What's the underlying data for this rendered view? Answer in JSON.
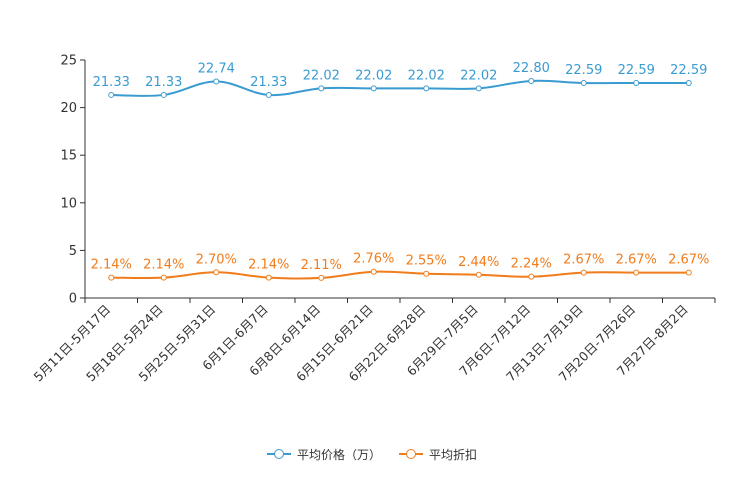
{
  "chart_data": {
    "type": "line",
    "categories": [
      "5月11日-5月17日",
      "5月18日-5月24日",
      "5月25日-5月31日",
      "6月1日-6月7日",
      "6月8日-6月14日",
      "6月15日-6月21日",
      "6月22日-6月28日",
      "6月29日-7月5日",
      "7月6日-7月12日",
      "7月13日-7月19日",
      "7月20日-7月26日",
      "7月27日-8月2日"
    ],
    "ylim": [
      0,
      25
    ],
    "yticks": [
      0,
      5,
      10,
      15,
      20,
      25
    ],
    "series": [
      {
        "name": "平均价格（万）",
        "color": "#3a9bd1",
        "values": [
          21.33,
          21.33,
          22.74,
          21.33,
          22.02,
          22.02,
          22.02,
          22.02,
          22.8,
          22.59,
          22.59,
          22.59
        ],
        "labels": [
          "21.33",
          "21.33",
          "22.74",
          "21.33",
          "22.02",
          "22.02",
          "22.02",
          "22.02",
          "22.80",
          "22.59",
          "22.59",
          "22.59"
        ]
      },
      {
        "name": "平均折扣",
        "color": "#f07c1b",
        "values": [
          2.14,
          2.14,
          2.7,
          2.14,
          2.11,
          2.76,
          2.55,
          2.44,
          2.24,
          2.67,
          2.67,
          2.67
        ],
        "labels": [
          "2.14%",
          "2.14%",
          "2.70%",
          "2.14%",
          "2.11%",
          "2.76%",
          "2.55%",
          "2.44%",
          "2.24%",
          "2.67%",
          "2.67%",
          "2.67%"
        ]
      }
    ]
  }
}
